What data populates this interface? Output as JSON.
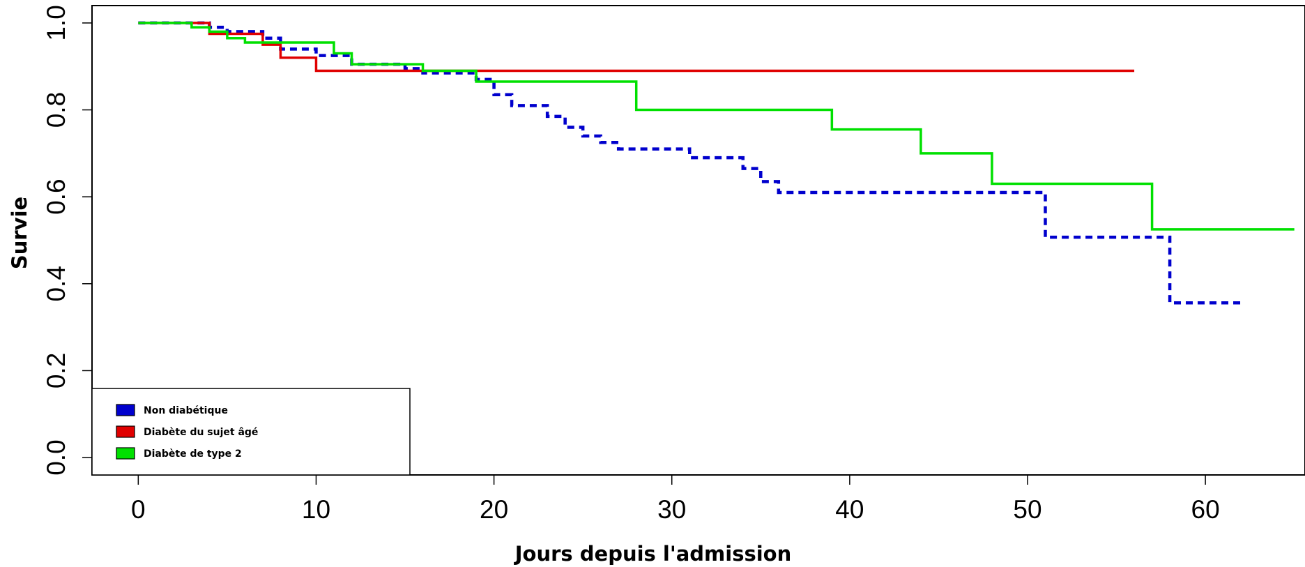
{
  "chart_data": {
    "type": "line",
    "step": true,
    "xlabel": "Jours depuis l'admission",
    "ylabel": "Survie",
    "xlim": [
      -2.6,
      65.6
    ],
    "ylim": [
      -0.04,
      1.04
    ],
    "xticks": [
      0,
      10,
      20,
      30,
      40,
      50,
      60
    ],
    "yticks": [
      0.0,
      0.2,
      0.4,
      0.6,
      0.8,
      1.0
    ],
    "xtick_labels": [
      "0",
      "10",
      "20",
      "30",
      "40",
      "50",
      "60"
    ],
    "ytick_labels": [
      "0.0",
      "0.2",
      "0.4",
      "0.6",
      "0.8",
      "1.0"
    ],
    "grid": false,
    "legend_position": "bottom-left",
    "series": [
      {
        "name": "Non diabétique",
        "color": "#0000CD",
        "dashed": true,
        "points": [
          [
            0,
            1.0
          ],
          [
            4,
            0.99
          ],
          [
            5,
            0.98
          ],
          [
            7,
            0.965
          ],
          [
            8,
            0.94
          ],
          [
            10,
            0.925
          ],
          [
            12,
            0.905
          ],
          [
            15,
            0.895
          ],
          [
            16,
            0.885
          ],
          [
            19,
            0.87
          ],
          [
            20,
            0.835
          ],
          [
            21,
            0.81
          ],
          [
            23,
            0.785
          ],
          [
            24,
            0.76
          ],
          [
            25,
            0.74
          ],
          [
            26,
            0.725
          ],
          [
            27,
            0.71
          ],
          [
            31,
            0.69
          ],
          [
            34,
            0.665
          ],
          [
            35,
            0.635
          ],
          [
            36,
            0.61
          ],
          [
            51,
            0.507
          ],
          [
            58,
            0.356
          ],
          [
            62,
            0.356
          ]
        ]
      },
      {
        "name": "Diabète du sujet âgé",
        "color": "#E00000",
        "dashed": false,
        "points": [
          [
            0,
            1.0
          ],
          [
            4,
            0.975
          ],
          [
            7,
            0.95
          ],
          [
            8,
            0.92
          ],
          [
            10,
            0.89
          ],
          [
            56,
            0.89
          ]
        ]
      },
      {
        "name": "Diabète de type 2",
        "color": "#00E000",
        "dashed": false,
        "points": [
          [
            0,
            1.0
          ],
          [
            3,
            0.99
          ],
          [
            4,
            0.98
          ],
          [
            5,
            0.965
          ],
          [
            6,
            0.955
          ],
          [
            11,
            0.93
          ],
          [
            12,
            0.905
          ],
          [
            16,
            0.89
          ],
          [
            19,
            0.865
          ],
          [
            28,
            0.8
          ],
          [
            39,
            0.755
          ],
          [
            44,
            0.7
          ],
          [
            48,
            0.63
          ],
          [
            57,
            0.525
          ],
          [
            65,
            0.525
          ]
        ]
      }
    ]
  }
}
